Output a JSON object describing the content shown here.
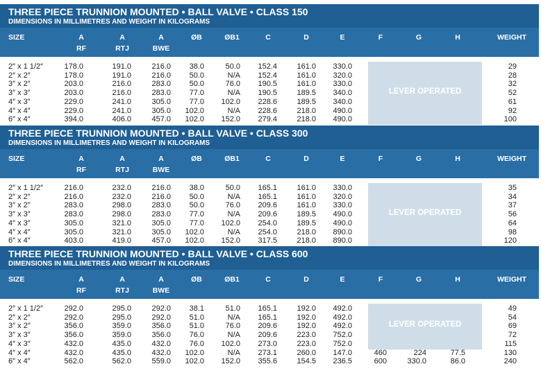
{
  "headers": {
    "size": "SIZE",
    "a_rf": [
      "A",
      "RF"
    ],
    "a_rtj": [
      "A",
      "RTJ"
    ],
    "a_bwe": [
      "A",
      "BWE"
    ],
    "ob": "ØB",
    "ob1": "ØB1",
    "c": "C",
    "d": "D",
    "e": "E",
    "f": "F",
    "g": "G",
    "h": "H",
    "weight": "WEIGHT"
  },
  "sections": [
    {
      "title": "THREE PIECE TRUNNION MOUNTED • BALL VALVE • CLASS 150",
      "subtitle": "DIMENSIONS IN MILLIMETRES AND WEIGHT IN KILOGRAMS",
      "lever": "LEVER OPERATED",
      "rows": [
        [
          "2″ x 1 1/2″",
          "178.0",
          "191.0",
          "216.0",
          "38.0",
          "50.0",
          "152.4",
          "161.0",
          "330.0",
          "",
          "",
          "",
          "29"
        ],
        [
          "2″ x 2″",
          "178.0",
          "191.0",
          "216.0",
          "50.0",
          "N/A",
          "152.4",
          "161.0",
          "320.0",
          "",
          "",
          "",
          "28"
        ],
        [
          "3″ x 2″",
          "203.0",
          "216.0",
          "283.0",
          "50.0",
          "76.0",
          "190.5",
          "161.0",
          "330.0",
          "",
          "",
          "",
          "32"
        ],
        [
          "3″ x 3″",
          "203.0",
          "216.0",
          "283.0",
          "77.0",
          "N/A",
          "190.5",
          "189.5",
          "340.0",
          "",
          "",
          "",
          "52"
        ],
        [
          "4″ x 3″",
          "229.0",
          "241.0",
          "305.0",
          "77.0",
          "102.0",
          "228.6",
          "189.5",
          "340.0",
          "",
          "",
          "",
          "61"
        ],
        [
          "4″ x 4″",
          "229.0",
          "241.0",
          "305.0",
          "102.0",
          "N/A",
          "228.6",
          "218.0",
          "490.0",
          "",
          "",
          "",
          "92"
        ],
        [
          "6″ x 4″",
          "394.0",
          "406.0",
          "457.0",
          "102.0",
          "152.0",
          "279.4",
          "218.0",
          "490.0",
          "",
          "",
          "",
          "100"
        ]
      ]
    },
    {
      "title": "THREE PIECE TRUNNION MOUNTED • BALL VALVE • CLASS 300",
      "subtitle": "DIMENSIONS IN MILLIMETRES AND WEIGHT IN KILOGRAMS",
      "lever": "LEVER OPERATED",
      "rows": [
        [
          "2″ x 1 1/2″",
          "216.0",
          "232.0",
          "216.0",
          "38.0",
          "50.0",
          "165.1",
          "161.0",
          "330.0",
          "",
          "",
          "",
          "35"
        ],
        [
          "2″ x 2″",
          "216.0",
          "232.0",
          "216.0",
          "50.0",
          "N/A",
          "165.1",
          "161.0",
          "320.0",
          "",
          "",
          "",
          "34"
        ],
        [
          "3″ x 2″",
          "283.0",
          "298.0",
          "283.0",
          "50.0",
          "76.0",
          "209.6",
          "161.0",
          "330.0",
          "",
          "",
          "",
          "37"
        ],
        [
          "3″ x 3″",
          "283.0",
          "298.0",
          "283.0",
          "77.0",
          "N/A",
          "209.6",
          "189.5",
          "490.0",
          "",
          "",
          "",
          "56"
        ],
        [
          "4″ x 3″",
          "305.0",
          "321.0",
          "305.0",
          "77.0",
          "102.0",
          "254.0",
          "189.5",
          "490.0",
          "",
          "",
          "",
          "64"
        ],
        [
          "4″ x 4″",
          "305.0",
          "321.0",
          "305.0",
          "102.0",
          "N/A",
          "254.0",
          "218.0",
          "890.0",
          "",
          "",
          "",
          "98"
        ],
        [
          "6″ x 4″",
          "403.0",
          "419.0",
          "457.0",
          "102.0",
          "152.0",
          "317.5",
          "218.0",
          "890.0",
          "",
          "",
          "",
          "120"
        ]
      ]
    },
    {
      "title": "THREE PIECE TRUNNION MOUNTED • BALL VALVE • CLASS 600",
      "subtitle": "DIMENSIONS IN MILLIMETRES AND WEIGHT IN KILOGRAMS",
      "lever": "LEVER OPERATED",
      "rows": [
        [
          "2″ x 1 1/2″",
          "292.0",
          "295.0",
          "292.0",
          "38.1",
          "51.0",
          "165.1",
          "192.0",
          "492.0",
          "",
          "",
          "",
          "49"
        ],
        [
          "2″ x 2″",
          "292.0",
          "295.0",
          "292.0",
          "51.0",
          "N/A",
          "165.1",
          "192.0",
          "492.0",
          "",
          "",
          "",
          "54"
        ],
        [
          "3″ x 2″",
          "356.0",
          "359.0",
          "356.0",
          "51.0",
          "76.0",
          "209.6",
          "192.0",
          "492.0",
          "",
          "",
          "",
          "69"
        ],
        [
          "3″ x 3″",
          "356.0",
          "359.0",
          "356.0",
          "76.0",
          "N/A",
          "209.6",
          "223.0",
          "752.0",
          "",
          "",
          "",
          "72"
        ],
        [
          "4″ x 3″",
          "432.0",
          "435.0",
          "432.0",
          "76.0",
          "102.0",
          "273.0",
          "223.0",
          "752.0",
          "",
          "",
          "",
          "115"
        ],
        [
          "4″ x 4″",
          "432.0",
          "435.0",
          "432.0",
          "102.0",
          "N/A",
          "273.1",
          "260.0",
          "147.0",
          "460",
          "224",
          "77.5",
          "130"
        ],
        [
          "6″ x 4″",
          "562.0",
          "562.0",
          "559.0",
          "102.0",
          "152.0",
          "355.6",
          "154.5",
          "236.5",
          "600",
          "330.0",
          "86.0",
          "240"
        ]
      ]
    }
  ],
  "colors": {
    "title_bar": "#1f5f93",
    "header_bar": "#2a6ea6",
    "lever_box": "#cfdde8"
  }
}
